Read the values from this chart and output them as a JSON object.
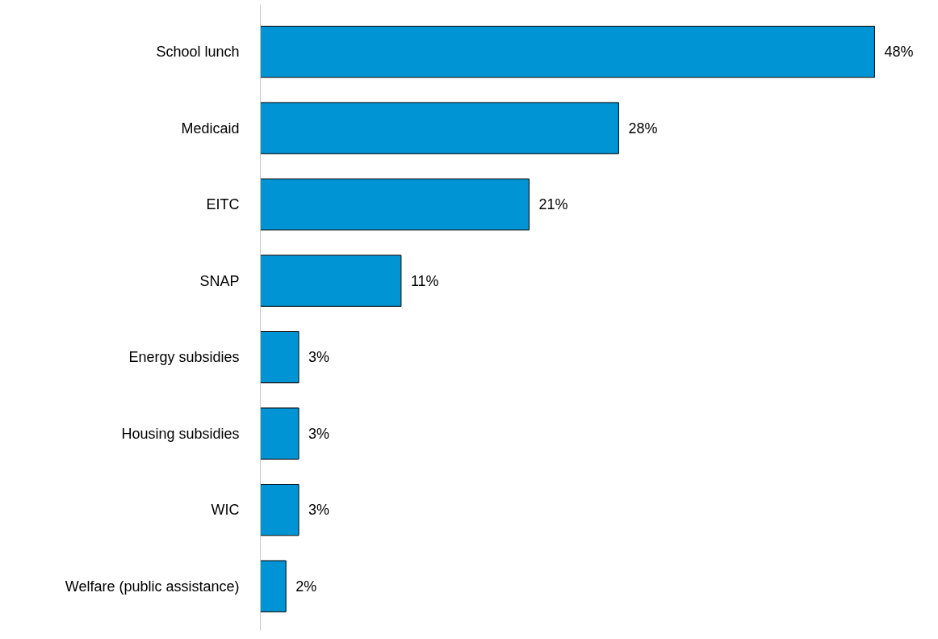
{
  "chart_data": {
    "type": "bar",
    "orientation": "horizontal",
    "categories": [
      "School lunch",
      "Medicaid",
      "EITC",
      "SNAP",
      "Energy subsidies",
      "Housing subsidies",
      "WIC",
      "Welfare (public assistance)"
    ],
    "values": [
      48,
      28,
      21,
      11,
      3,
      3,
      3,
      2
    ],
    "color": "#0094d4",
    "data_labels": true,
    "value_labels": [
      "48%",
      "28%",
      "21%",
      "11%",
      "3%",
      "3%",
      "3%",
      "2%"
    ],
    "tick_labels": "y"
  }
}
